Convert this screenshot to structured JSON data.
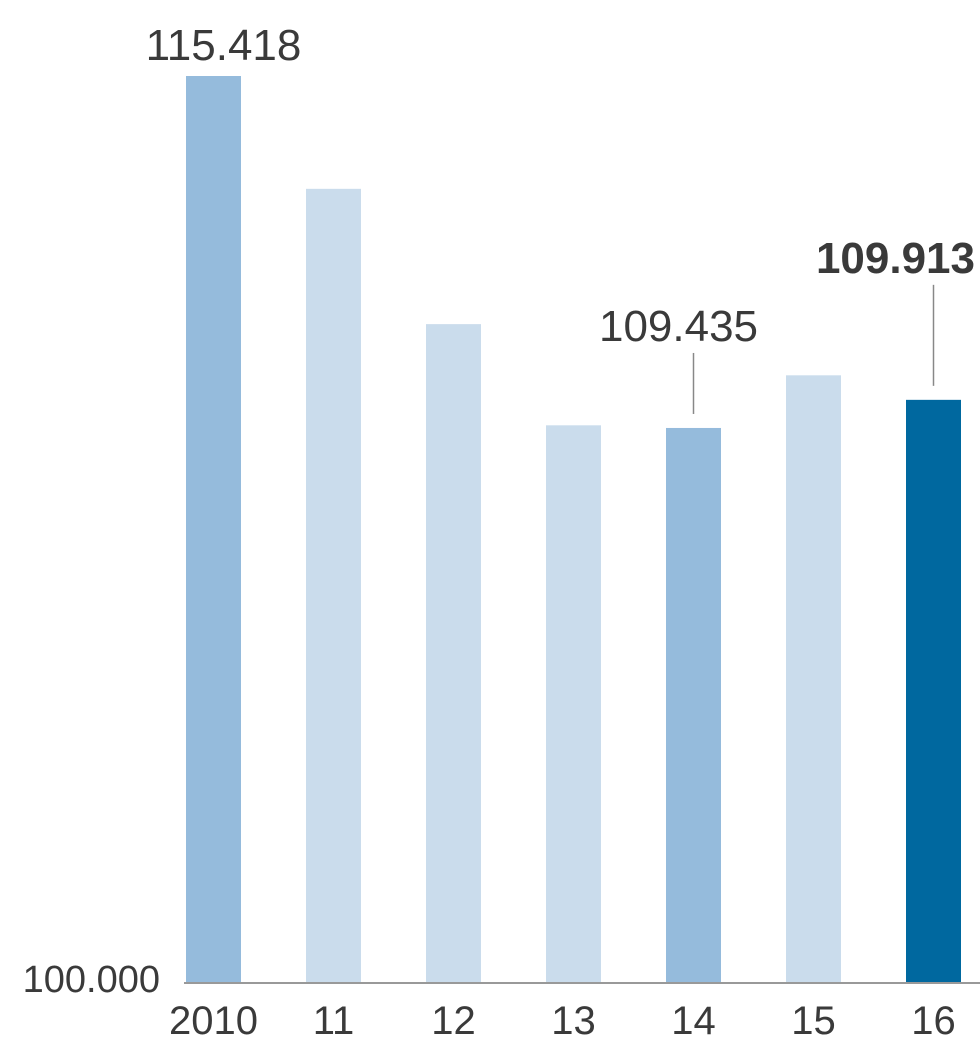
{
  "chart_data": {
    "type": "bar",
    "title": "",
    "xlabel": "",
    "ylabel": "",
    "categories": [
      "2010",
      "11",
      "12",
      "13",
      "14",
      "15",
      "16"
    ],
    "values": [
      115418,
      113500,
      111200,
      109480,
      109435,
      110330,
      109913
    ],
    "ylim": [
      100000,
      116000
    ],
    "baseline_label": "100.000",
    "grid": false,
    "annotations": [
      {
        "category": "2010",
        "text": "115.418",
        "style": "regular",
        "leader_line": false
      },
      {
        "category": "14",
        "text": "109.435",
        "style": "regular",
        "leader_line": true
      },
      {
        "category": "16",
        "text": "109.913",
        "style": "bold",
        "leader_line": true
      }
    ],
    "bar_colors": [
      "#95bbdc",
      "#cadcec",
      "#cadcec",
      "#cadcec",
      "#95bbdc",
      "#cadcec",
      "#00689f"
    ]
  },
  "colors": {
    "text": "#3a3a3a",
    "axis": "#999999",
    "leader": "#888888"
  }
}
